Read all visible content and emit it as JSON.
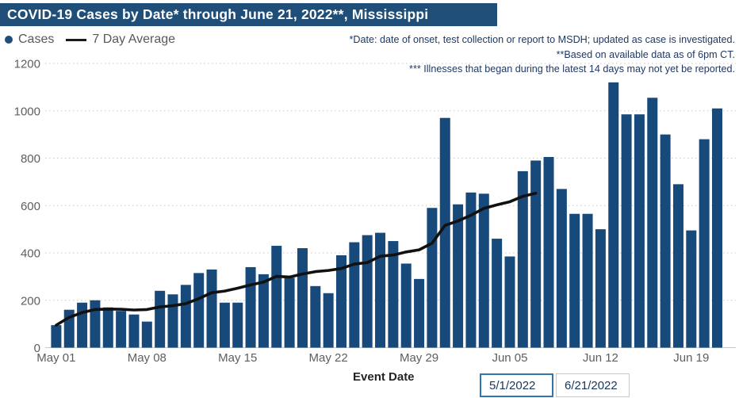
{
  "title": "COVID-19 Cases by Date* through June 21, 2022**, Mississippi",
  "legend": {
    "cases_label": "Cases",
    "avg_label": "7 Day Average"
  },
  "annotations": {
    "line1": "*Date: date of onset, test collection or report to MSDH; updated as case is investigated.",
    "line2": "**Based on available data as of 6pm CT.",
    "line3": "*** Illnesses that began during the latest 14 days may not yet be reported."
  },
  "x_axis_label": "Event Date",
  "date_range": {
    "start": "5/1/2022",
    "end": "6/21/2022"
  },
  "colors": {
    "title_bg": "#1F4E79",
    "title_text": "#FFFFFF",
    "bar": "#17497B",
    "avg_line": "#111111",
    "annotation_text": "#1F3864",
    "legend_text": "#595959",
    "axis_text": "#605E5C",
    "gridline": "#C9C7C5",
    "date_text": "#16365C"
  },
  "chart_data": {
    "type": "bar",
    "title": "COVID-19 Cases by Date* through June 21, 2022**, Mississippi",
    "xlabel": "Event Date",
    "ylabel": "",
    "ylim": [
      0,
      1200
    ],
    "y_ticks": [
      0,
      200,
      400,
      600,
      800,
      1000,
      1200
    ],
    "grid": "dotted horizontal",
    "legend_position": "top-left",
    "dates": [
      "May 01",
      "May 02",
      "May 03",
      "May 04",
      "May 05",
      "May 06",
      "May 07",
      "May 08",
      "May 09",
      "May 10",
      "May 11",
      "May 12",
      "May 13",
      "May 14",
      "May 15",
      "May 16",
      "May 17",
      "May 18",
      "May 19",
      "May 20",
      "May 21",
      "May 22",
      "May 23",
      "May 24",
      "May 25",
      "May 26",
      "May 27",
      "May 28",
      "May 29",
      "May 30",
      "May 31",
      "Jun 01",
      "Jun 02",
      "Jun 03",
      "Jun 04",
      "Jun 05",
      "Jun 06",
      "Jun 07",
      "Jun 08",
      "Jun 09",
      "Jun 10",
      "Jun 11",
      "Jun 12",
      "Jun 13",
      "Jun 14",
      "Jun 15",
      "Jun 16",
      "Jun 17",
      "Jun 18",
      "Jun 19",
      "Jun 20",
      "Jun 21"
    ],
    "x_tick_indices": [
      0,
      7,
      14,
      21,
      28,
      35,
      42,
      49
    ],
    "x_tick_labels": [
      "May 01",
      "May 08",
      "May 15",
      "May 22",
      "May 29",
      "Jun 05",
      "Jun 12",
      "Jun 19"
    ],
    "series": [
      {
        "name": "Cases",
        "type": "bar",
        "values": [
          95,
          160,
          190,
          200,
          170,
          155,
          140,
          110,
          240,
          225,
          265,
          315,
          330,
          190,
          190,
          340,
          310,
          430,
          295,
          420,
          260,
          230,
          390,
          445,
          475,
          485,
          450,
          355,
          290,
          590,
          970,
          605,
          655,
          650,
          460,
          385,
          745,
          790,
          805,
          670,
          565,
          565,
          500,
          1120,
          985,
          985,
          1055,
          900,
          690,
          495,
          880,
          1010
        ]
      },
      {
        "name": "7 Day Average",
        "type": "line",
        "values": [
          95,
          128,
          148,
          161,
          163,
          162,
          159,
          161,
          172,
          177,
          186,
          207,
          232,
          239,
          251,
          265,
          277,
          301,
          298,
          311,
          321,
          326,
          334,
          353,
          359,
          386,
          391,
          404,
          413,
          441,
          516,
          535,
          559,
          588,
          603,
          616,
          639,
          652
        ]
      }
    ]
  }
}
